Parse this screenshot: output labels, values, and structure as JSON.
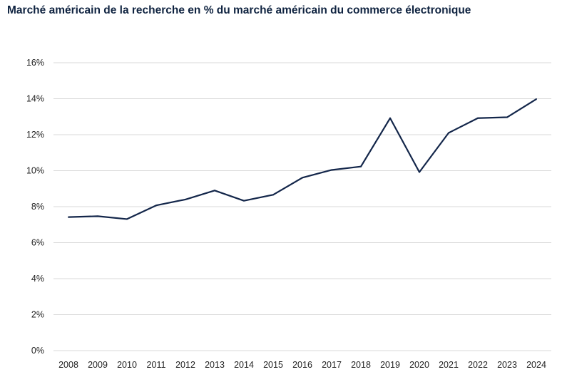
{
  "chart_data": {
    "type": "line",
    "title": "Marché américain de la recherche en % du marché américain du commerce électronique",
    "xlabel": "",
    "ylabel": "",
    "categories": [
      "2008",
      "2009",
      "2010",
      "2011",
      "2012",
      "2013",
      "2014",
      "2015",
      "2016",
      "2017",
      "2018",
      "2019",
      "2020",
      "2021",
      "2022",
      "2023",
      "2024"
    ],
    "values": [
      7.42,
      7.47,
      7.31,
      8.07,
      8.4,
      8.9,
      8.33,
      8.66,
      9.61,
      10.04,
      10.23,
      12.92,
      9.92,
      12.1,
      12.92,
      12.97,
      13.98
    ],
    "ylim": [
      0,
      16
    ],
    "yticks": [
      "0%",
      "2%",
      "4%",
      "6%",
      "8%",
      "10%",
      "12%",
      "14%",
      "16%"
    ],
    "grid": true,
    "line_color": "#13264a",
    "grid_color": "#d9d9d9"
  }
}
